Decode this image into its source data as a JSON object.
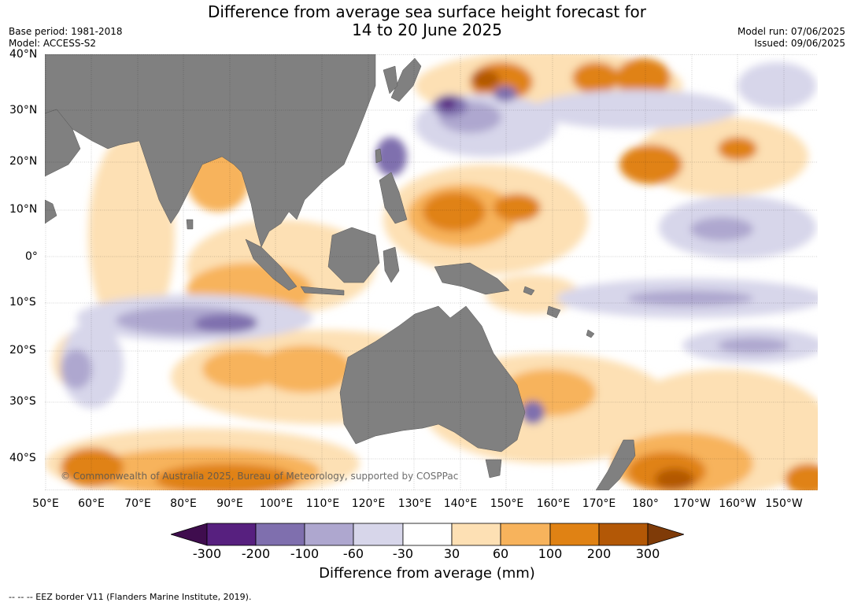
{
  "title_line1": "Difference from average sea surface height forecast for",
  "title_line2": "14 to 20 June 2025",
  "base_period": "Base period: 1981-2018",
  "model": "Model: ACCESS-S2",
  "model_run": "Model run: 07/06/2025",
  "issued": "Issued: 09/06/2025",
  "copyright": "© Commonwealth of Australia 2025, Bureau of Meteorology, supported by COSPPac",
  "lat_labels": [
    "40°N",
    "30°N",
    "20°N",
    "10°N",
    "0°",
    "10°S",
    "20°S",
    "30°S",
    "40°S"
  ],
  "lon_labels": [
    "50°E",
    "60°E",
    "70°E",
    "80°E",
    "90°E",
    "100°E",
    "110°E",
    "120°E",
    "130°E",
    "140°E",
    "150°E",
    "160°E",
    "170°E",
    "180°",
    "170°W",
    "160°W",
    "150°W"
  ],
  "colorbar": {
    "ticks": [
      "-300",
      "-200",
      "-100",
      "-60",
      "-30",
      "30",
      "60",
      "100",
      "200",
      "300"
    ],
    "colors": [
      "#3f0d4e",
      "#57207f",
      "#7f6fae",
      "#aea7cf",
      "#d7d6ea",
      "#ffffff",
      "#fde0b4",
      "#f7b35c",
      "#e08214",
      "#b35806",
      "#7f3b08"
    ],
    "label": "Difference from average (mm)"
  },
  "footnote": "--  --  -- EEZ border V11 (Flanders Marine Institute, 2019).",
  "land_color": "#808080"
}
